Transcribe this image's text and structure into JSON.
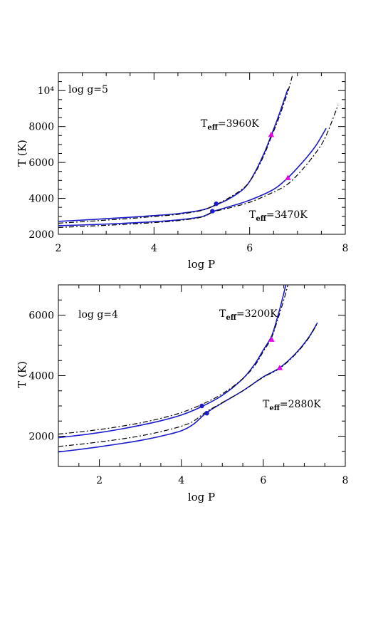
{
  "chart_data": [
    {
      "type": "line",
      "title": "",
      "panel_label": "log g=5",
      "xlabel": "log P",
      "ylabel": "T (K)",
      "xlim": [
        2,
        8
      ],
      "ylim": [
        2000,
        11000
      ],
      "x_ticks": [
        2,
        4,
        6,
        8
      ],
      "y_ticks": [
        2000,
        4000,
        6000,
        8000,
        10000
      ],
      "y_tick_labels": [
        "2000",
        "4000",
        "6000",
        "8000",
        "10⁴"
      ],
      "series": [
        {
          "name": "",
          "annotation": "Teff=3960K",
          "style": "solid",
          "color": "#1a1acc",
          "x": [
            2.0,
            2.5,
            3.0,
            3.5,
            4.0,
            4.5,
            5.0,
            5.3,
            5.6,
            5.9,
            6.1,
            6.3,
            6.45,
            6.6,
            6.8
          ],
          "y": [
            2720,
            2790,
            2870,
            2950,
            3040,
            3150,
            3350,
            3640,
            4020,
            4600,
            5400,
            6500,
            7500,
            8550,
            10100
          ]
        },
        {
          "name": "",
          "annotation": "",
          "style": "dashdot",
          "color": "#000000",
          "x": [
            2.0,
            2.5,
            3.0,
            3.5,
            4.0,
            4.5,
            5.0,
            5.3,
            5.6,
            5.9,
            6.1,
            6.3,
            6.45,
            6.6,
            6.8,
            6.9
          ],
          "y": [
            2620,
            2700,
            2790,
            2880,
            2990,
            3110,
            3330,
            3660,
            4080,
            4640,
            5350,
            6400,
            7400,
            8400,
            9950,
            10900
          ]
        },
        {
          "name": "",
          "annotation": "Teff=3470K",
          "style": "solid",
          "color": "#1a1acc",
          "x": [
            2.0,
            2.5,
            3.0,
            3.5,
            4.0,
            4.5,
            5.0,
            5.25,
            5.5,
            6.0,
            6.5,
            6.8,
            7.0,
            7.2,
            7.4,
            7.6
          ],
          "y": [
            2480,
            2520,
            2570,
            2630,
            2700,
            2800,
            2980,
            3280,
            3480,
            3900,
            4500,
            5150,
            5700,
            6300,
            7000,
            7900
          ]
        },
        {
          "name": "",
          "annotation": "",
          "style": "dashdot",
          "color": "#000000",
          "x": [
            2.0,
            2.5,
            3.0,
            3.5,
            4.0,
            4.5,
            5.0,
            5.25,
            5.5,
            6.0,
            6.5,
            6.8,
            7.1,
            7.4,
            7.6,
            7.85
          ],
          "y": [
            2380,
            2440,
            2500,
            2570,
            2650,
            2760,
            2960,
            3260,
            3420,
            3780,
            4350,
            4800,
            5600,
            6600,
            7500,
            9200
          ]
        }
      ],
      "markers": [
        {
          "shape": "circle",
          "color": "#1a1acc",
          "x": 5.3,
          "y": 3700
        },
        {
          "shape": "circle",
          "color": "#1a1acc",
          "x": 5.22,
          "y": 3290
        },
        {
          "shape": "triangle",
          "color": "#e600e6",
          "x": 6.45,
          "y": 7550
        },
        {
          "shape": "triangle",
          "color": "#e600e6",
          "x": 6.8,
          "y": 5150
        }
      ],
      "grid": false,
      "legend": "none"
    },
    {
      "type": "line",
      "title": "",
      "panel_label": "log g=4",
      "xlabel": "log P",
      "ylabel": "T (K)",
      "xlim": [
        1,
        8
      ],
      "ylim": [
        1000,
        7000
      ],
      "x_ticks": [
        2,
        4,
        6,
        8
      ],
      "y_ticks": [
        2000,
        4000,
        6000
      ],
      "y_tick_labels": [
        "2000",
        "4000",
        "6000"
      ],
      "series": [
        {
          "name": "",
          "annotation": "Teff=3200K",
          "style": "solid",
          "color": "#1a1acc",
          "x": [
            1.0,
            1.5,
            2.0,
            2.5,
            3.0,
            3.5,
            4.0,
            4.5,
            5.0,
            5.5,
            5.8,
            6.0,
            6.2,
            6.35,
            6.45,
            6.55
          ],
          "y": [
            1950,
            2030,
            2120,
            2230,
            2360,
            2510,
            2700,
            2980,
            3350,
            3900,
            4400,
            4850,
            5300,
            5950,
            6450,
            7000
          ]
        },
        {
          "name": "",
          "annotation": "",
          "style": "dashdot",
          "color": "#000000",
          "x": [
            1.0,
            1.5,
            2.0,
            2.5,
            3.0,
            3.5,
            4.0,
            4.5,
            5.0,
            5.5,
            5.8,
            6.0,
            6.2,
            6.35,
            6.5,
            6.6
          ],
          "y": [
            2070,
            2140,
            2220,
            2320,
            2440,
            2590,
            2780,
            3050,
            3400,
            3900,
            4350,
            4800,
            5250,
            5850,
            6500,
            7000
          ]
        },
        {
          "name": "",
          "annotation": "Teff=2880K",
          "style": "solid",
          "color": "#1a1acc",
          "x": [
            1.0,
            1.5,
            2.0,
            2.5,
            3.0,
            3.5,
            4.0,
            4.3,
            4.6,
            5.0,
            5.5,
            6.0,
            6.4,
            6.8,
            7.1,
            7.32
          ],
          "y": [
            1480,
            1560,
            1650,
            1750,
            1860,
            2000,
            2180,
            2400,
            2760,
            3100,
            3500,
            3960,
            4260,
            4750,
            5250,
            5750
          ]
        },
        {
          "name": "",
          "annotation": "",
          "style": "dashdot",
          "color": "#000000",
          "x": [
            1.0,
            1.5,
            2.0,
            2.5,
            3.0,
            3.5,
            4.0,
            4.3,
            4.6,
            5.0,
            5.5,
            6.0,
            6.4,
            6.8,
            7.1,
            7.32
          ],
          "y": [
            1660,
            1730,
            1810,
            1900,
            2010,
            2150,
            2330,
            2500,
            2800,
            3110,
            3500,
            3950,
            4240,
            4730,
            5230,
            5730
          ]
        }
      ],
      "markers": [
        {
          "shape": "circle",
          "color": "#1a1acc",
          "x": 4.5,
          "y": 3000
        },
        {
          "shape": "circle",
          "color": "#1a1acc",
          "x": 4.62,
          "y": 2760
        },
        {
          "shape": "triangle",
          "color": "#e600e6",
          "x": 6.2,
          "y": 5200
        },
        {
          "shape": "triangle",
          "color": "#e600e6",
          "x": 6.4,
          "y": 4260
        }
      ],
      "grid": false,
      "legend": "none"
    }
  ]
}
